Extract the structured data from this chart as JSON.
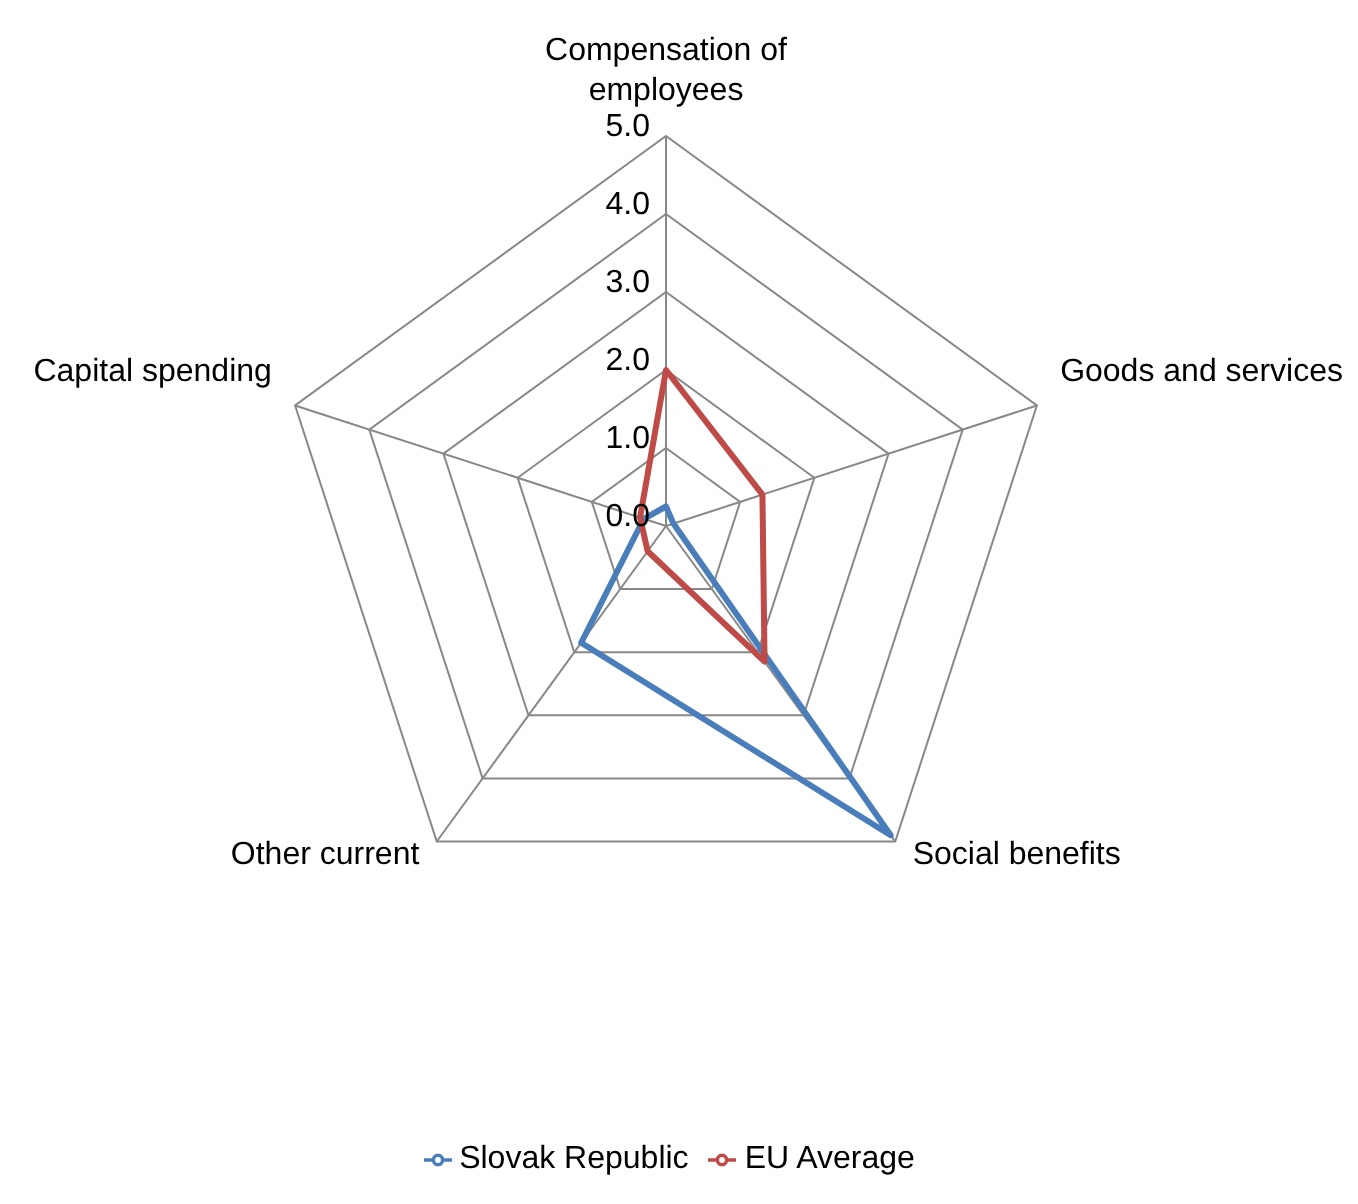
{
  "chart_data": {
    "type": "radar",
    "categories": [
      "Compensation of employees",
      "Goods and services",
      "Social benefits",
      "Other current",
      "Capital spending"
    ],
    "series": [
      {
        "name": "Slovak Republic",
        "color": "#4a7ebb",
        "values": [
          0.25,
          0.1,
          4.9,
          1.85,
          0.3
        ]
      },
      {
        "name": "EU Average",
        "color": "#be4b48",
        "values": [
          2.0,
          1.3,
          2.15,
          0.4,
          0.35
        ]
      }
    ],
    "ylim": [
      0,
      5
    ],
    "yticks": [
      {
        "value": 0,
        "label": "0.0"
      },
      {
        "value": 1,
        "label": "1.0"
      },
      {
        "value": 2,
        "label": "2.0"
      },
      {
        "value": 3,
        "label": "3.0"
      },
      {
        "value": 4,
        "label": "4.0"
      },
      {
        "value": 5,
        "label": "5.0"
      }
    ],
    "grid": true,
    "legend": "bottom",
    "marker": "none"
  }
}
